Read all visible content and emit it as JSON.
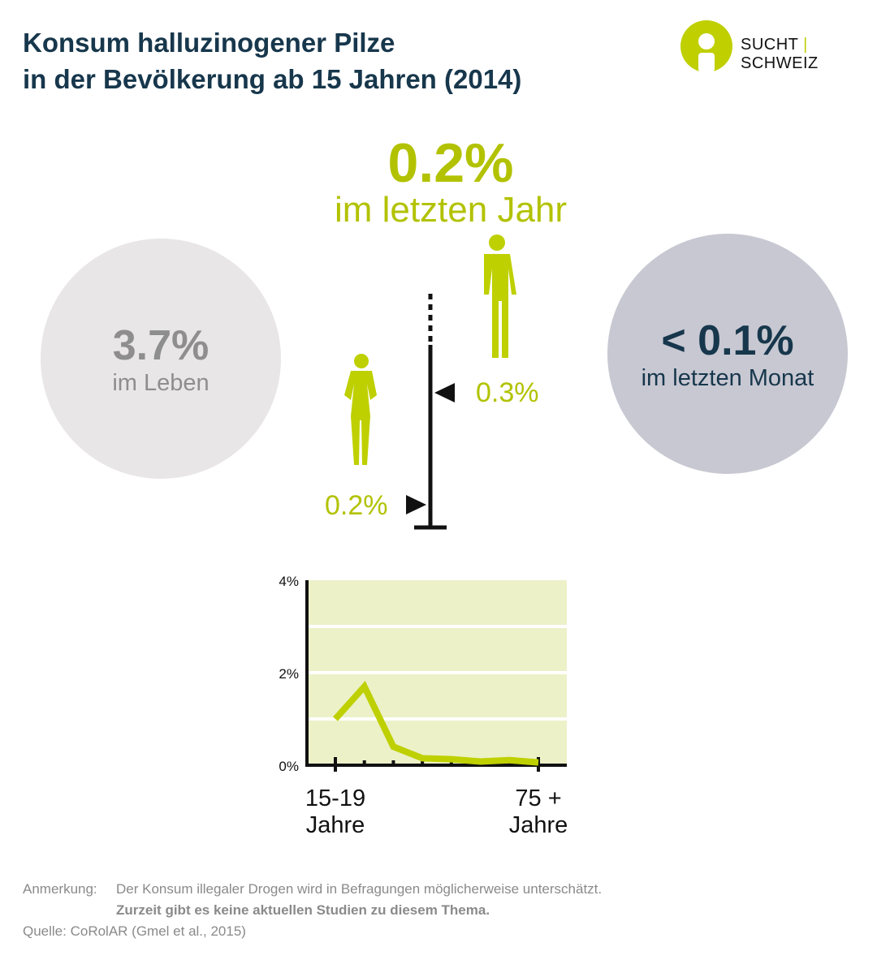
{
  "title": [
    "Konsum halluzinogener Pilze",
    "in der Bevölkerung ab 15 Jahren (2014)"
  ],
  "logo": {
    "left": "SUCHT",
    "right": "SCHWEIZ",
    "color": "#bfcf00"
  },
  "year": {
    "value": "0.2%",
    "label": "im letzten Jahr"
  },
  "lifetime": {
    "value": "3.7%",
    "label": "im Leben"
  },
  "month": {
    "value": "< 0.1%",
    "label": "im letzten Monat"
  },
  "men": {
    "value": "0.3%",
    "icon": "man-icon"
  },
  "women": {
    "value": "0.2%",
    "icon": "woman-icon"
  },
  "colors": {
    "accent": "#b2c200",
    "line": "#bfd000",
    "plot_bg": "#ecf1c8",
    "dark": "#17374c"
  },
  "chart_data": {
    "type": "line",
    "x_tick_labels": [
      "15-19 Jahre",
      "75 + Jahre"
    ],
    "categories": [
      "15-19",
      "",
      "",
      "",
      "",
      "",
      "",
      "75 +"
    ],
    "values": [
      1.0,
      1.7,
      0.4,
      0.15,
      0.13,
      0.08,
      0.11,
      0.06
    ],
    "y_ticks": [
      "0%",
      "2%",
      "4%"
    ],
    "ylim": [
      0,
      4
    ],
    "grid": true
  },
  "notes": {
    "label": "Anmerkung:",
    "line1": "Der Konsum illegaler Drogen wird in Befragungen möglicherweise unterschätzt.",
    "line2": "Zurzeit gibt es keine aktuellen Studien zu diesem Thema.",
    "source": "Quelle: CoRolAR (Gmel et al., 2015)"
  }
}
